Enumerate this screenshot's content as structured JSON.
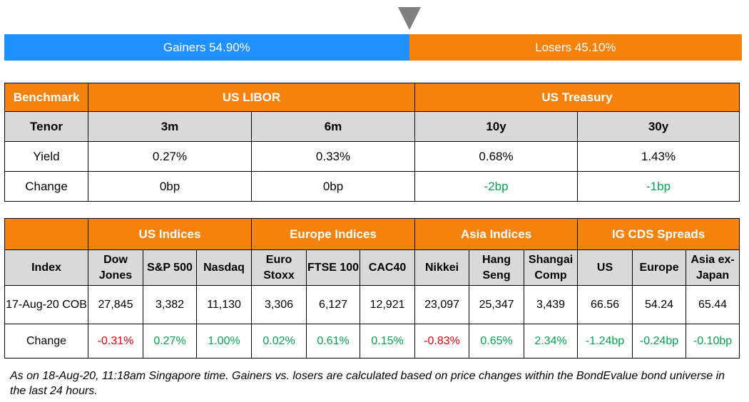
{
  "bar": {
    "gainers_label": "Gainers 54.90%",
    "losers_label": "Losers 45.10%",
    "gainers_pct": 54.9,
    "losers_pct": 45.1,
    "gainers_color": "#1e90ff",
    "losers_color": "#f5820d"
  },
  "rates": {
    "benchmark_label": "Benchmark",
    "libor_label": "US LIBOR",
    "treasury_label": "US Treasury",
    "tenor_label": "Tenor",
    "tenors": [
      "3m",
      "6m",
      "10y",
      "30y"
    ],
    "yield_label": "Yield",
    "yields": [
      "0.27%",
      "0.33%",
      "0.68%",
      "1.43%"
    ],
    "change_label": "Change",
    "changes": [
      "0bp",
      "0bp",
      "-2bp",
      "-1bp"
    ]
  },
  "indices": {
    "groups": [
      "US Indices",
      "Europe Indices",
      "Asia Indices",
      "IG CDS Spreads"
    ],
    "index_label": "Index",
    "headers": [
      [
        "Dow",
        "Jones"
      ],
      [
        "S&P 500"
      ],
      [
        "Nasdaq"
      ],
      [
        "Euro",
        "Stoxx"
      ],
      [
        "FTSE 100"
      ],
      [
        "CAC40"
      ],
      [
        "Nikkei"
      ],
      [
        "Hang",
        "Seng"
      ],
      [
        "Shangai",
        "Comp"
      ],
      [
        "US"
      ],
      [
        "Europe"
      ],
      [
        "Asia ex-",
        "Japan"
      ]
    ],
    "date_label": "17-Aug-20 COB",
    "values": [
      "27,845",
      "3,382",
      "11,130",
      "3,306",
      "6,127",
      "12,921",
      "23,097",
      "25,347",
      "3,439",
      "66.56",
      "54.24",
      "65.44"
    ],
    "change_label": "Change",
    "changes": [
      "-0.31%",
      "0.27%",
      "1.00%",
      "0.02%",
      "0.61%",
      "0.15%",
      "-0.83%",
      "0.65%",
      "2.34%",
      "-1.24bp",
      "-0.24bp",
      "-0.10bp"
    ]
  },
  "note": "As on 18-Aug-20, 11:18am Singapore time. Gainers vs. losers are calculated based on price changes within the BondEvalue bond universe in the last 24 hours.",
  "colors": {
    "header_orange": "#f5820d",
    "subheader_gray": "#d9d9d9",
    "positive_green": "#00a650",
    "negative_red": "#e8000b"
  }
}
